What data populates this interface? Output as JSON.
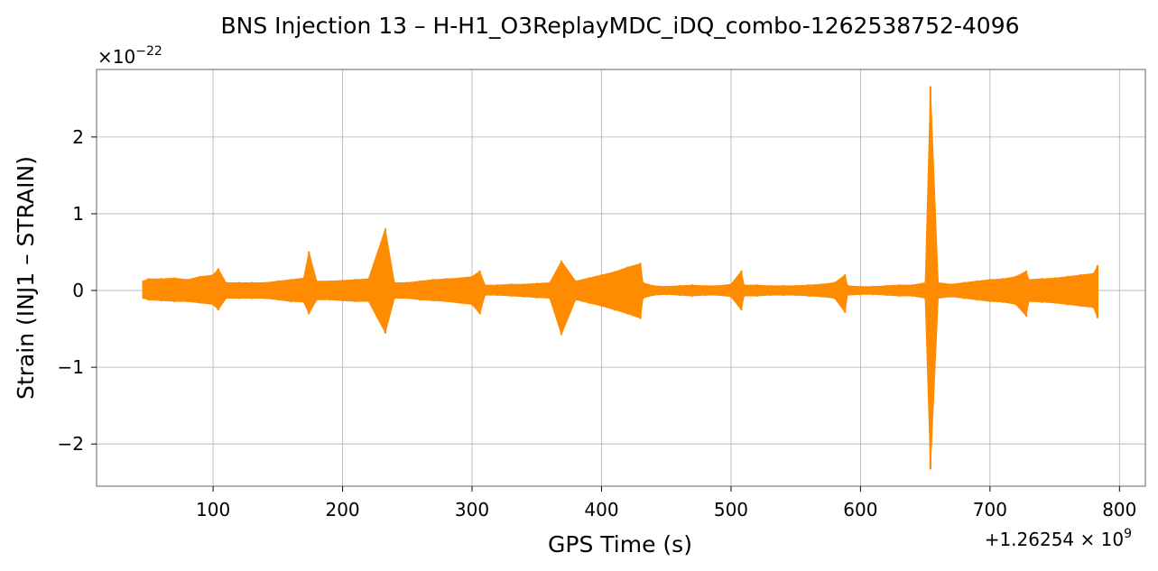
{
  "chart_data": {
    "type": "line",
    "title": "BNS Injection 13 – H-H1_O3ReplayMDC_iDQ_combo-1262538752-4096",
    "xlabel": "GPS Time (s)",
    "ylabel": "Strain (INJ1 – STRAIN)",
    "x_offset_label": "+1.26254 × 10",
    "x_offset_exponent": "9",
    "y_scale_label": "×10",
    "y_scale_exponent": "−22",
    "xlim": [
      10,
      820
    ],
    "ylim": [
      -2.55,
      2.88
    ],
    "xticks": [
      100,
      200,
      300,
      400,
      500,
      600,
      700,
      800
    ],
    "xtick_labels": [
      "100",
      "200",
      "300",
      "400",
      "500",
      "600",
      "700",
      "800"
    ],
    "yticks": [
      -2,
      -1,
      0,
      1,
      2
    ],
    "ytick_labels": [
      "−2",
      "−1",
      "0",
      "1",
      "2"
    ],
    "grid": true,
    "legend": "none",
    "series": [
      {
        "color": "#ff8c00",
        "x_range": [
          46,
          783
        ],
        "x": [
          46,
          50,
          60,
          70,
          80,
          90,
          100,
          104,
          110,
          120,
          130,
          140,
          150,
          160,
          170,
          174,
          180,
          190,
          200,
          210,
          220,
          233,
          240,
          250,
          260,
          270,
          280,
          290,
          300,
          306,
          310,
          320,
          330,
          340,
          350,
          360,
          369,
          380,
          390,
          400,
          410,
          420,
          430,
          432,
          440,
          450,
          460,
          470,
          480,
          490,
          500,
          508,
          510,
          520,
          530,
          540,
          550,
          560,
          570,
          580,
          588,
          590,
          600,
          610,
          620,
          630,
          640,
          650,
          654,
          660,
          670,
          680,
          690,
          700,
          710,
          720,
          728,
          730,
          740,
          750,
          760,
          770,
          780,
          783
        ],
        "upper": [
          0.12,
          0.15,
          0.15,
          0.16,
          0.14,
          0.18,
          0.2,
          0.28,
          0.1,
          0.1,
          0.1,
          0.1,
          0.12,
          0.14,
          0.16,
          0.5,
          0.12,
          0.12,
          0.13,
          0.14,
          0.15,
          0.8,
          0.1,
          0.1,
          0.12,
          0.14,
          0.15,
          0.16,
          0.18,
          0.25,
          0.07,
          0.07,
          0.08,
          0.08,
          0.09,
          0.1,
          0.38,
          0.12,
          0.16,
          0.2,
          0.24,
          0.3,
          0.35,
          0.1,
          0.06,
          0.05,
          0.06,
          0.07,
          0.06,
          0.06,
          0.08,
          0.25,
          0.07,
          0.07,
          0.06,
          0.06,
          0.06,
          0.07,
          0.08,
          0.1,
          0.2,
          0.06,
          0.05,
          0.05,
          0.06,
          0.07,
          0.07,
          0.1,
          2.65,
          0.1,
          0.08,
          0.1,
          0.12,
          0.14,
          0.15,
          0.18,
          0.25,
          0.14,
          0.15,
          0.16,
          0.18,
          0.2,
          0.22,
          0.32
        ],
        "lower": [
          -0.1,
          -0.12,
          -0.13,
          -0.14,
          -0.14,
          -0.16,
          -0.18,
          -0.25,
          -0.1,
          -0.1,
          -0.1,
          -0.1,
          -0.12,
          -0.14,
          -0.15,
          -0.3,
          -0.12,
          -0.12,
          -0.13,
          -0.14,
          -0.14,
          -0.55,
          -0.1,
          -0.1,
          -0.12,
          -0.13,
          -0.14,
          -0.16,
          -0.18,
          -0.3,
          -0.06,
          -0.06,
          -0.07,
          -0.08,
          -0.09,
          -0.1,
          -0.57,
          -0.12,
          -0.16,
          -0.2,
          -0.25,
          -0.3,
          -0.36,
          -0.1,
          -0.06,
          -0.05,
          -0.06,
          -0.07,
          -0.06,
          -0.06,
          -0.08,
          -0.25,
          -0.07,
          -0.07,
          -0.06,
          -0.06,
          -0.06,
          -0.07,
          -0.08,
          -0.1,
          -0.28,
          -0.06,
          -0.05,
          -0.05,
          -0.06,
          -0.07,
          -0.07,
          -0.1,
          -2.32,
          -0.1,
          -0.08,
          -0.1,
          -0.12,
          -0.14,
          -0.15,
          -0.18,
          -0.33,
          -0.14,
          -0.15,
          -0.16,
          -0.18,
          -0.2,
          -0.22,
          -0.35
        ]
      }
    ]
  }
}
